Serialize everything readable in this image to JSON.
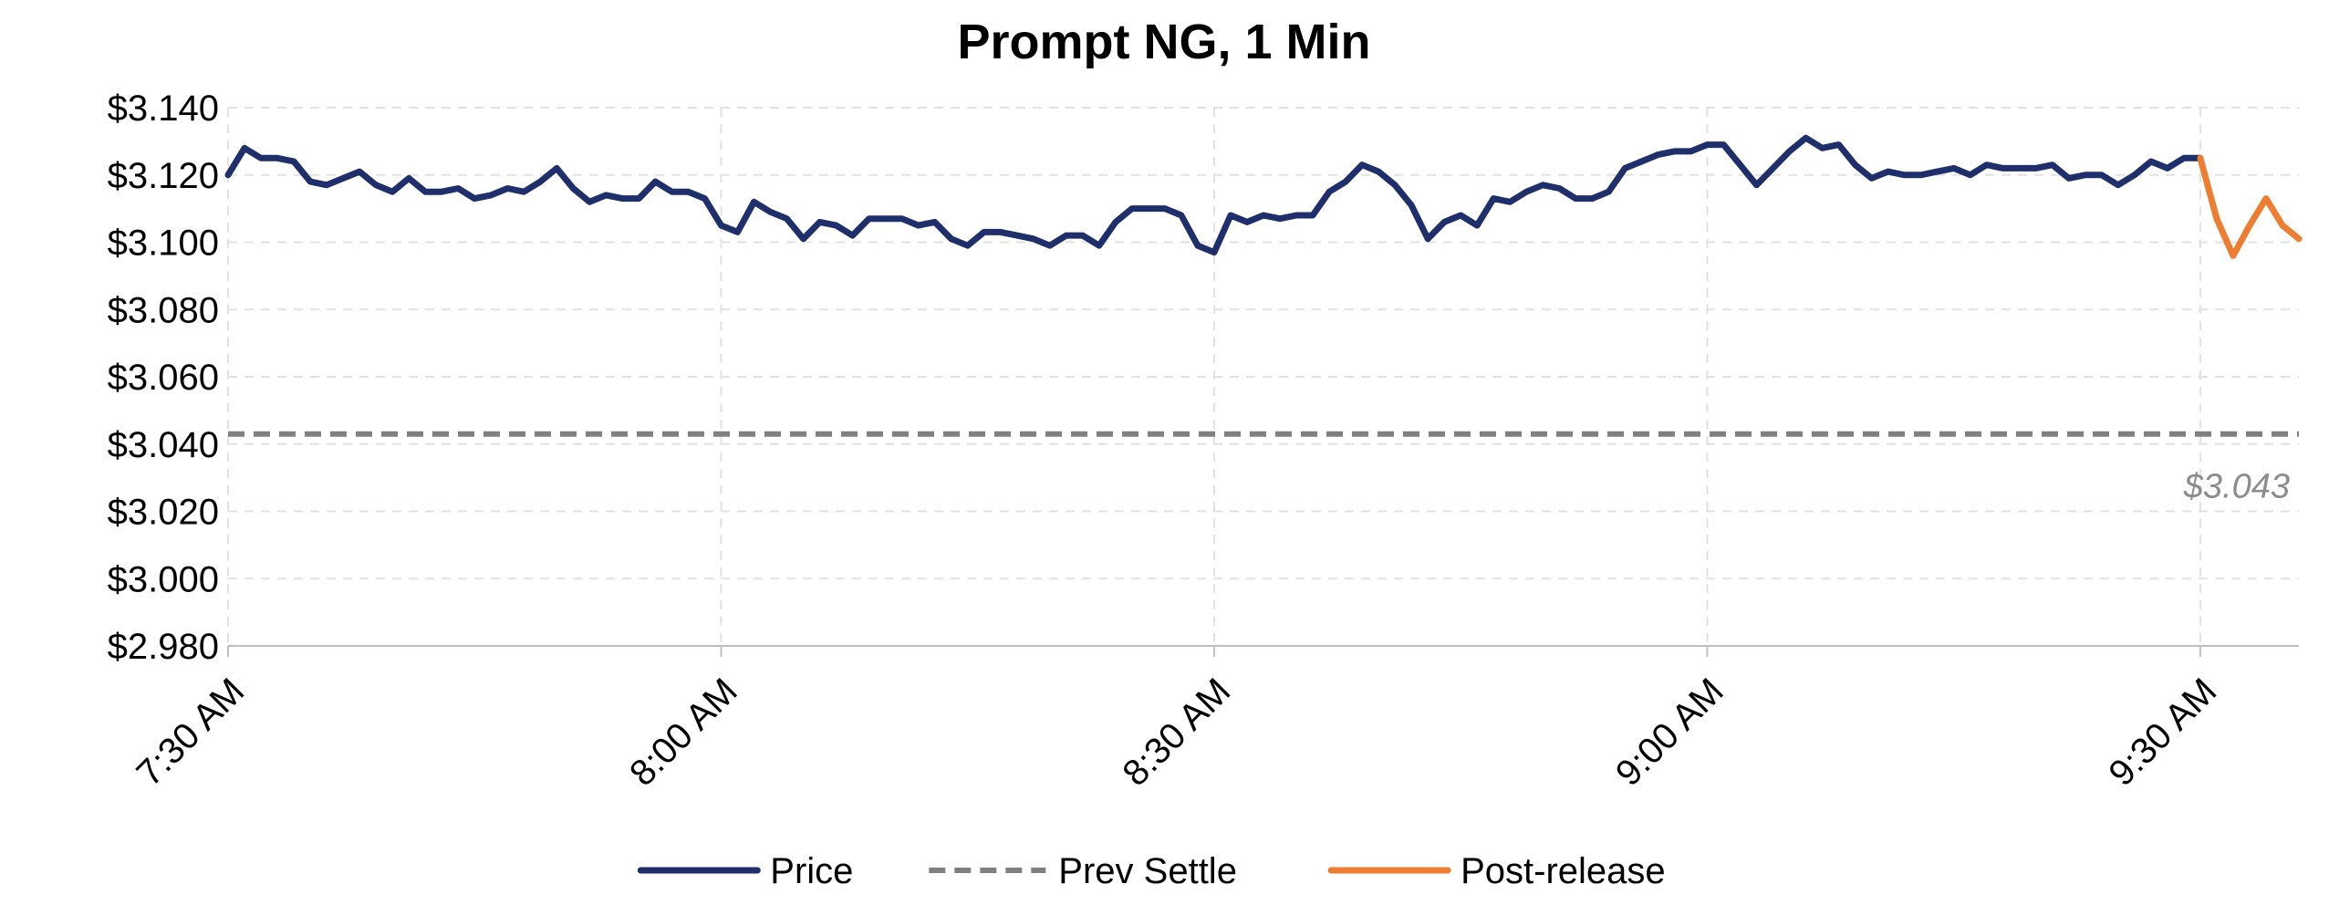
{
  "chart_data": {
    "type": "line",
    "title": "Prompt NG, 1 Min",
    "xlabel": "",
    "ylabel": "",
    "ylim": [
      2.98,
      3.14
    ],
    "yticks": [
      2.98,
      3.0,
      3.02,
      3.04,
      3.06,
      3.08,
      3.1,
      3.12,
      3.14
    ],
    "ytick_labels": [
      "$2.980",
      "$3.000",
      "$3.020",
      "$3.040",
      "$3.060",
      "$3.080",
      "$3.100",
      "$3.120",
      "$3.140"
    ],
    "xlim": [
      "7:30 AM",
      "9:36 AM"
    ],
    "xticks": [
      "7:30 AM",
      "8:00 AM",
      "8:30 AM",
      "9:00 AM",
      "9:30 AM"
    ],
    "grid": true,
    "legend_position": "bottom",
    "series": [
      {
        "name": "Price",
        "color": "#1f2f6b",
        "style": "solid",
        "x": [
          "7:30 AM",
          "7:31 AM",
          "7:32 AM",
          "7:33 AM",
          "7:34 AM",
          "7:35 AM",
          "7:36 AM",
          "7:37 AM",
          "7:38 AM",
          "7:39 AM",
          "7:40 AM",
          "7:41 AM",
          "7:42 AM",
          "7:43 AM",
          "7:44 AM",
          "7:45 AM",
          "7:46 AM",
          "7:47 AM",
          "7:48 AM",
          "7:49 AM",
          "7:50 AM",
          "7:51 AM",
          "7:52 AM",
          "7:53 AM",
          "7:54 AM",
          "7:55 AM",
          "7:56 AM",
          "7:57 AM",
          "7:58 AM",
          "7:59 AM",
          "8:00 AM",
          "8:01 AM",
          "8:02 AM",
          "8:03 AM",
          "8:04 AM",
          "8:05 AM",
          "8:06 AM",
          "8:07 AM",
          "8:08 AM",
          "8:09 AM",
          "8:10 AM",
          "8:11 AM",
          "8:12 AM",
          "8:13 AM",
          "8:14 AM",
          "8:15 AM",
          "8:16 AM",
          "8:17 AM",
          "8:18 AM",
          "8:19 AM",
          "8:20 AM",
          "8:21 AM",
          "8:22 AM",
          "8:23 AM",
          "8:24 AM",
          "8:25 AM",
          "8:26 AM",
          "8:27 AM",
          "8:28 AM",
          "8:29 AM",
          "8:30 AM",
          "8:31 AM",
          "8:32 AM",
          "8:33 AM",
          "8:34 AM",
          "8:35 AM",
          "8:36 AM",
          "8:37 AM",
          "8:38 AM",
          "8:39 AM",
          "8:40 AM",
          "8:41 AM",
          "8:42 AM",
          "8:43 AM",
          "8:44 AM",
          "8:45 AM",
          "8:46 AM",
          "8:47 AM",
          "8:48 AM",
          "8:49 AM",
          "8:50 AM",
          "8:51 AM",
          "8:52 AM",
          "8:53 AM",
          "8:54 AM",
          "8:55 AM",
          "8:56 AM",
          "8:57 AM",
          "8:58 AM",
          "8:59 AM",
          "9:00 AM",
          "9:01 AM",
          "9:02 AM",
          "9:03 AM",
          "9:04 AM",
          "9:05 AM",
          "9:06 AM",
          "9:07 AM",
          "9:08 AM",
          "9:09 AM",
          "9:10 AM",
          "9:11 AM",
          "9:12 AM",
          "9:13 AM",
          "9:14 AM",
          "9:15 AM",
          "9:16 AM",
          "9:17 AM",
          "9:18 AM",
          "9:19 AM",
          "9:20 AM",
          "9:21 AM",
          "9:22 AM",
          "9:23 AM",
          "9:24 AM",
          "9:25 AM",
          "9:26 AM",
          "9:27 AM",
          "9:28 AM",
          "9:29 AM",
          "9:30 AM"
        ],
        "values": [
          3.12,
          3.128,
          3.125,
          3.125,
          3.124,
          3.118,
          3.117,
          3.119,
          3.121,
          3.117,
          3.115,
          3.119,
          3.115,
          3.115,
          3.116,
          3.113,
          3.114,
          3.116,
          3.115,
          3.118,
          3.122,
          3.116,
          3.112,
          3.114,
          3.113,
          3.113,
          3.118,
          3.115,
          3.115,
          3.113,
          3.105,
          3.103,
          3.112,
          3.109,
          3.107,
          3.101,
          3.106,
          3.105,
          3.102,
          3.107,
          3.107,
          3.107,
          3.105,
          3.106,
          3.101,
          3.099,
          3.103,
          3.103,
          3.102,
          3.101,
          3.099,
          3.102,
          3.102,
          3.099,
          3.106,
          3.11,
          3.11,
          3.11,
          3.108,
          3.099,
          3.097,
          3.108,
          3.106,
          3.108,
          3.107,
          3.108,
          3.108,
          3.115,
          3.118,
          3.123,
          3.121,
          3.117,
          3.111,
          3.101,
          3.106,
          3.108,
          3.105,
          3.113,
          3.112,
          3.115,
          3.117,
          3.116,
          3.113,
          3.113,
          3.115,
          3.122,
          3.124,
          3.126,
          3.127,
          3.127,
          3.129,
          3.129,
          3.123,
          3.117,
          3.122,
          3.127,
          3.131,
          3.128,
          3.129,
          3.123,
          3.119,
          3.121,
          3.12,
          3.12,
          3.121,
          3.122,
          3.12,
          3.123,
          3.122,
          3.122,
          3.122,
          3.123,
          3.119,
          3.12,
          3.12,
          3.117,
          3.12,
          3.124,
          3.122,
          3.125,
          3.125
        ]
      },
      {
        "name": "Prev Settle",
        "color": "#808080",
        "style": "dashed",
        "x": [
          "7:30 AM",
          "9:36 AM"
        ],
        "values": [
          3.043,
          3.043
        ]
      },
      {
        "name": "Post-release",
        "color": "#ed7d31",
        "style": "solid",
        "x": [
          "9:30 AM",
          "9:31 AM",
          "9:32 AM",
          "9:33 AM",
          "9:34 AM",
          "9:35 AM",
          "9:36 AM"
        ],
        "values": [
          3.125,
          3.107,
          3.096,
          3.105,
          3.113,
          3.105,
          3.101
        ]
      }
    ],
    "annotations": [
      {
        "text": "$3.043",
        "series": "Prev Settle"
      }
    ]
  }
}
